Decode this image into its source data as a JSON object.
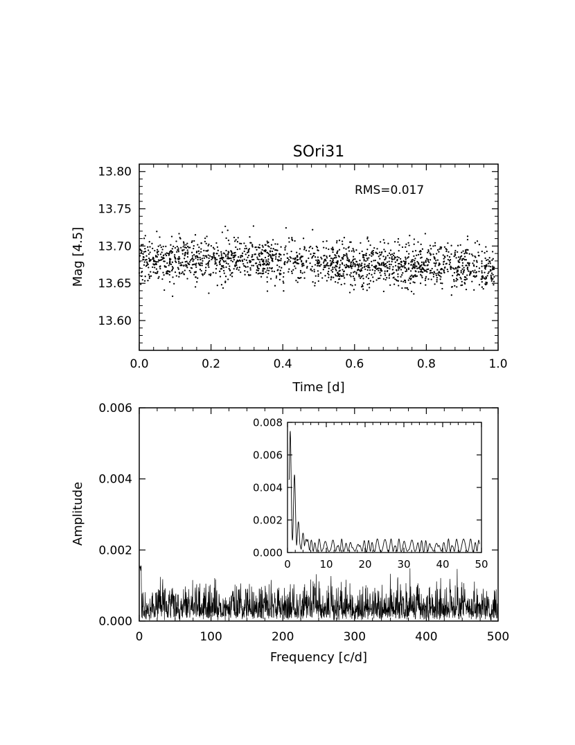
{
  "chart_data": [
    {
      "type": "scatter",
      "title": "SOri31",
      "xlabel": "Time [d]",
      "ylabel": "Mag [4.5]",
      "annotation": "RMS=0.017",
      "xlim": [
        0.0,
        1.0
      ],
      "ylim": [
        13.81,
        13.56
      ],
      "y_inverted": true,
      "x_ticks": [
        "0.0",
        "0.2",
        "0.4",
        "0.6",
        "0.8",
        "1.0"
      ],
      "y_ticks": [
        "13.60",
        "13.65",
        "13.70",
        "13.75",
        "13.80"
      ],
      "series": [
        {
          "n_points": 1800,
          "x_range": [
            0.0,
            0.99
          ],
          "y_trend": [
            [
              0.0,
              13.68
            ],
            [
              0.3,
              13.685
            ],
            [
              0.6,
              13.675
            ],
            [
              0.99,
              13.67
            ]
          ],
          "rms": 0.017
        }
      ]
    },
    {
      "type": "line",
      "xlabel": "Frequency [c/d]",
      "ylabel": "Amplitude",
      "xlim": [
        0,
        500
      ],
      "ylim": [
        0,
        0.006
      ],
      "x_ticks": [
        "0",
        "100",
        "200",
        "300",
        "400",
        "500"
      ],
      "y_ticks": [
        "0.000",
        "0.002",
        "0.004",
        "0.006"
      ],
      "series": [
        {
          "n_points": 1500,
          "x_range": [
            0,
            500
          ],
          "mean_amplitude": 0.0005,
          "max_amplitude": 0.0014
        }
      ]
    },
    {
      "type": "line",
      "inset": true,
      "xlim": [
        0,
        50
      ],
      "ylim": [
        0,
        0.008
      ],
      "x_ticks": [
        "0",
        "10",
        "20",
        "30",
        "40",
        "50"
      ],
      "y_ticks": [
        "0.000",
        "0.002",
        "0.004",
        "0.006",
        "0.008"
      ],
      "series": [
        {
          "peaks": [
            [
              0.7,
              0.0075
            ],
            [
              1.8,
              0.0048
            ],
            [
              2.8,
              0.0019
            ],
            [
              4.0,
              0.0012
            ],
            [
              5.2,
              0.0008
            ]
          ],
          "background_amplitude": 0.0006
        }
      ]
    }
  ]
}
